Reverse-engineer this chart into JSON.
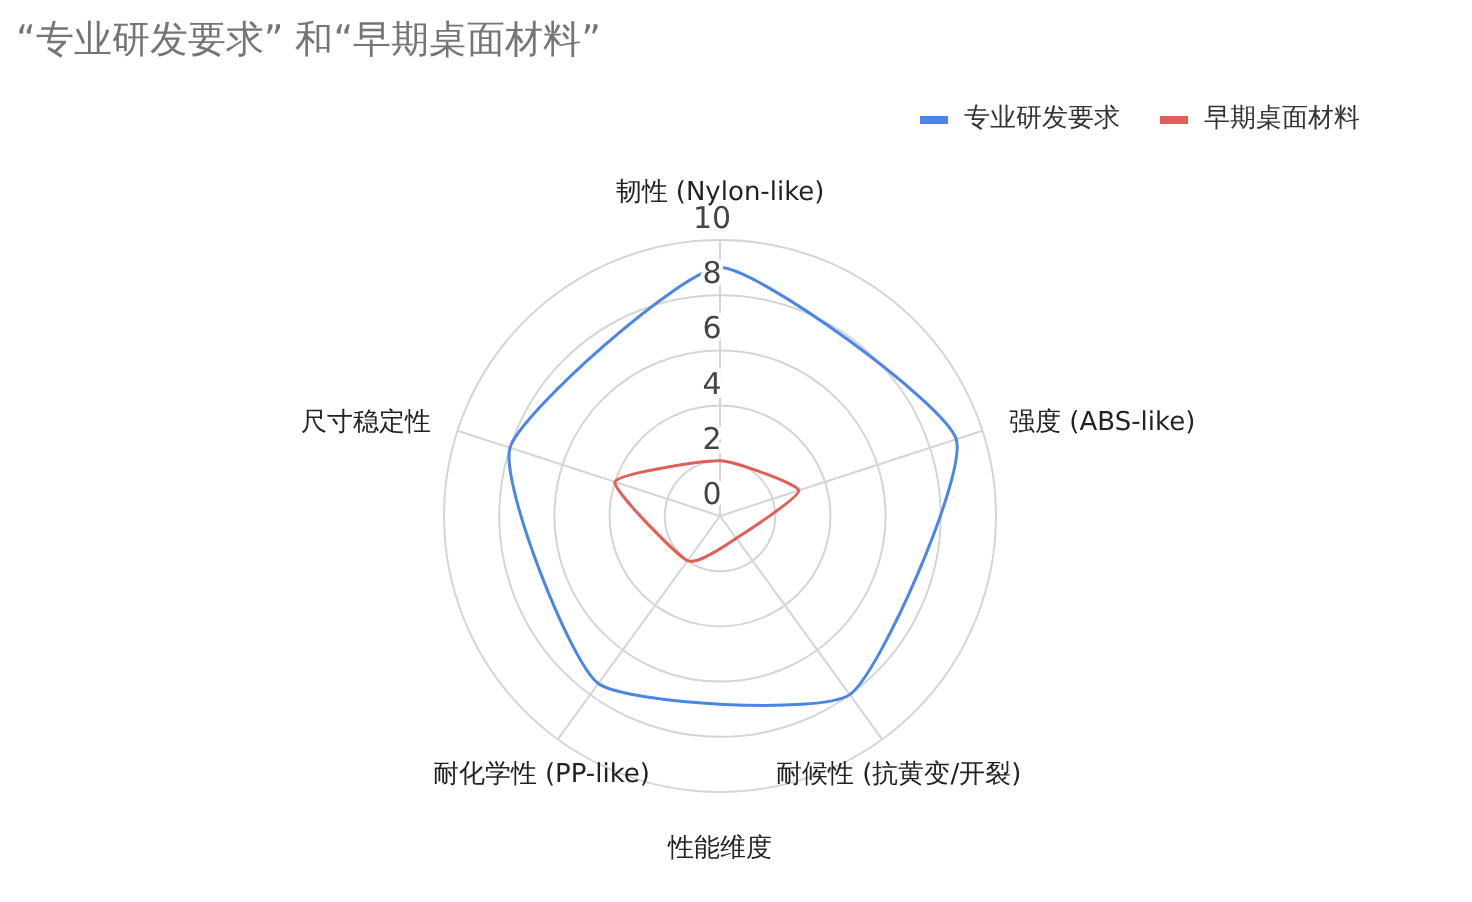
{
  "chart_data": {
    "type": "radar",
    "title": "“专业研发要求” 和“早期桌面材料”",
    "xlabel": "性能维度",
    "categories": [
      "韧性 (Nylon-like)",
      "强度 (ABS-like)",
      "耐候性 (抗黄变/开裂)",
      "耐化学性 (PP-like)",
      "尺寸稳定性"
    ],
    "series": [
      {
        "name": "专业研发要求",
        "color": "#4a86e8",
        "values": [
          9,
          9,
          8,
          7.5,
          8
        ]
      },
      {
        "name": "早期桌面材料",
        "color": "#e06055",
        "values": [
          2,
          3,
          1,
          2,
          4
        ]
      }
    ],
    "ylim": [
      0,
      10
    ],
    "yticks": [
      0,
      2,
      4,
      6,
      8,
      10
    ],
    "grid": true,
    "legend": "top right"
  }
}
